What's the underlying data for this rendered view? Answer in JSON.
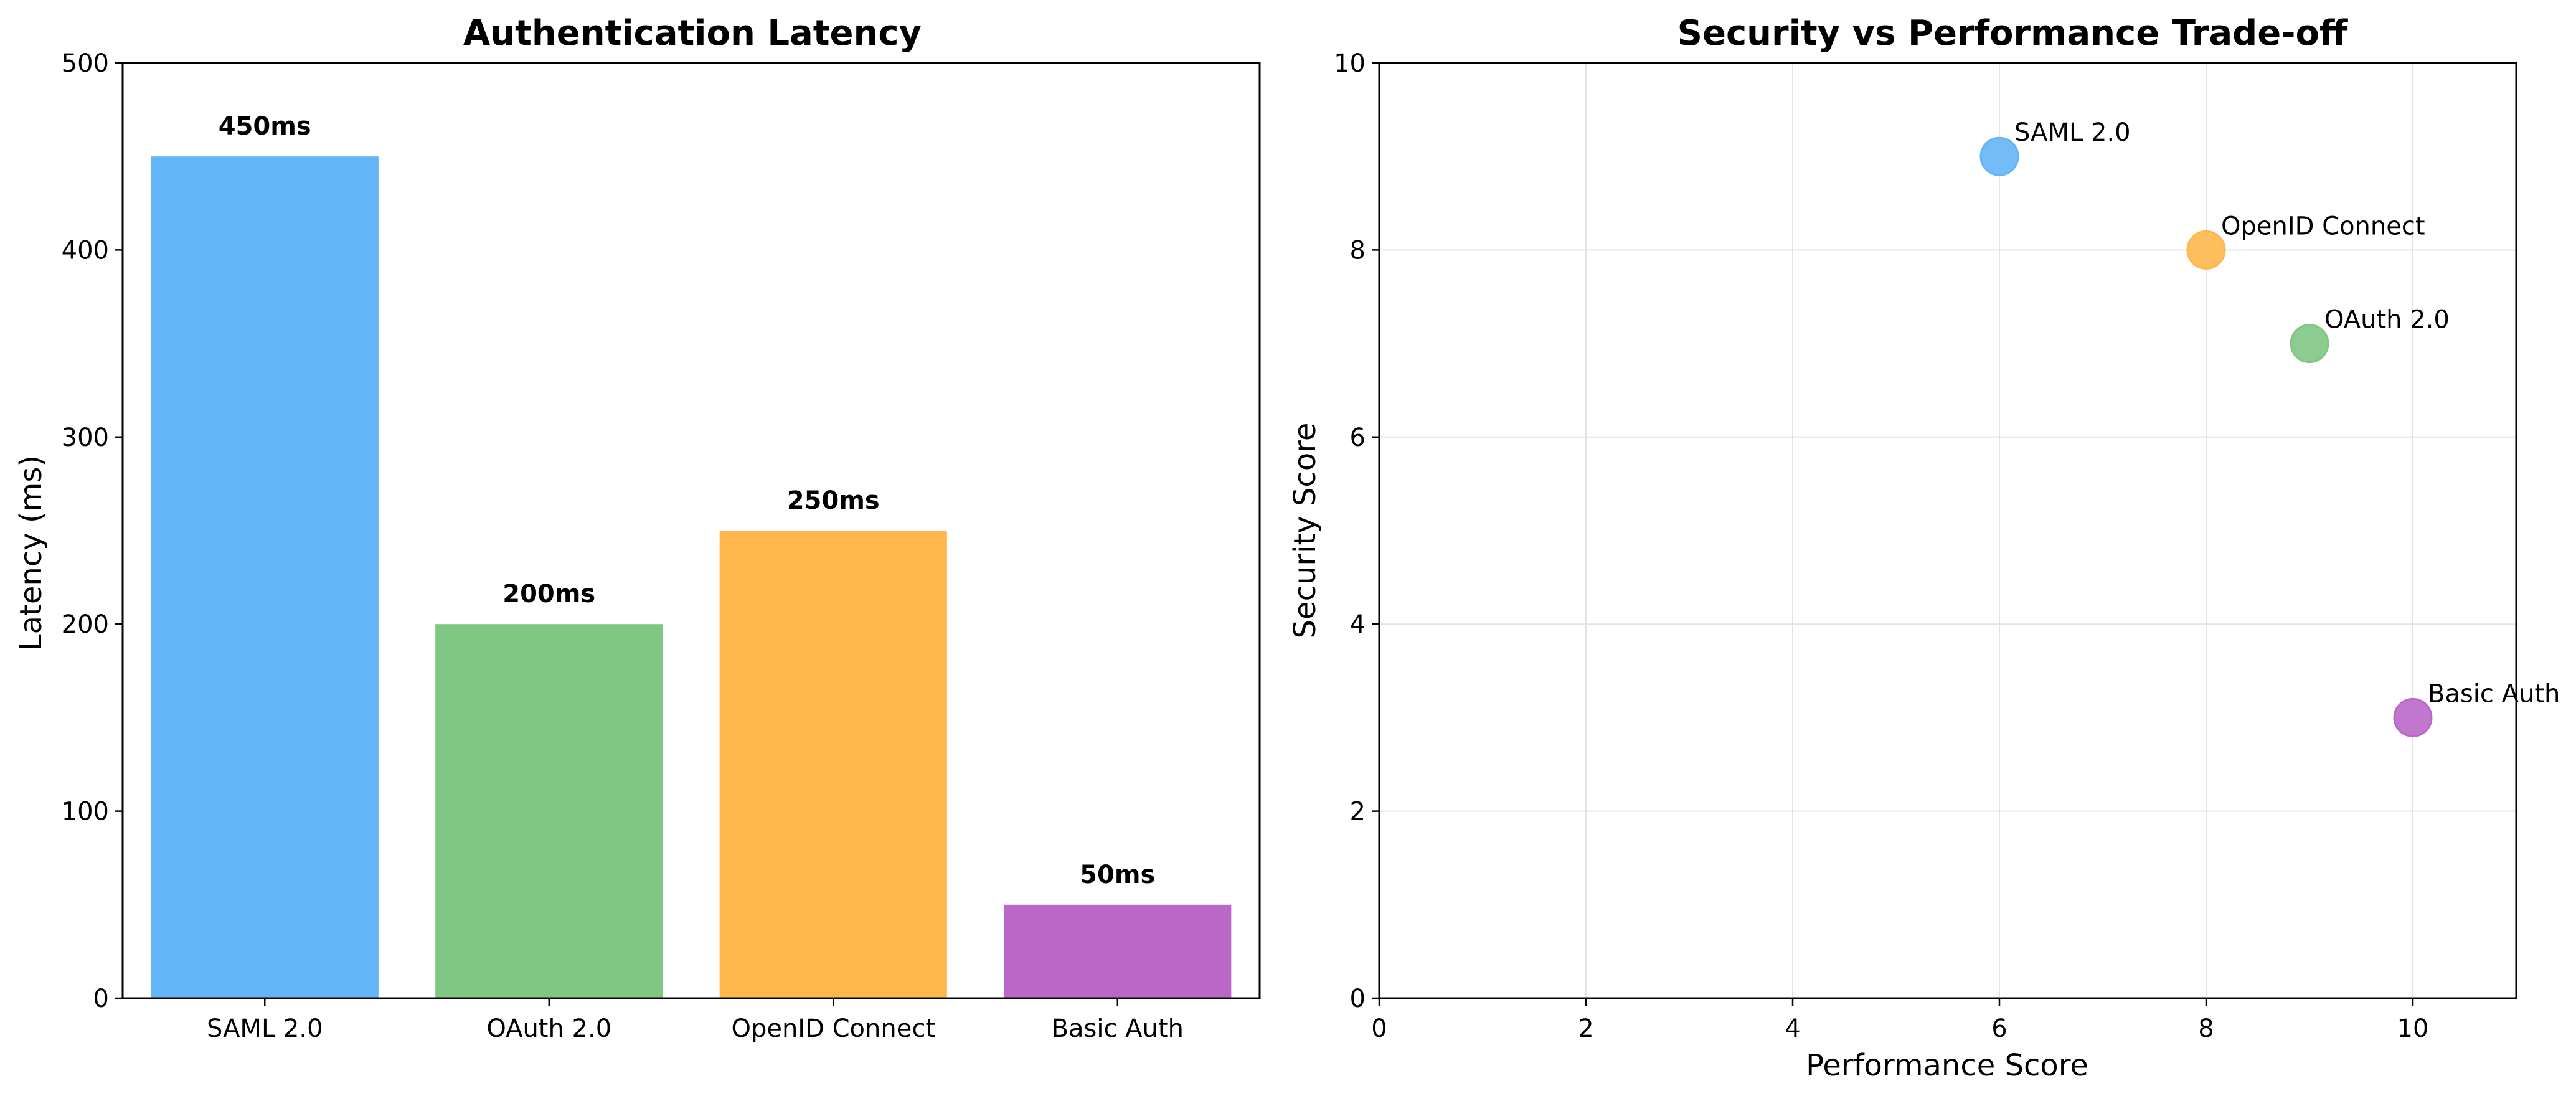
{
  "chart_data": [
    {
      "type": "bar",
      "title": "Authentication Latency",
      "xlabel": "",
      "ylabel": "Latency (ms)",
      "categories": [
        "SAML 2.0",
        "OAuth 2.0",
        "OpenID Connect",
        "Basic Auth"
      ],
      "values": [
        450,
        200,
        250,
        50
      ],
      "value_labels": [
        "450ms",
        "200ms",
        "250ms",
        "50ms"
      ],
      "colors": [
        "#64b5f6",
        "#81c784",
        "#ffb74d",
        "#ba68c8"
      ],
      "ylim": [
        0,
        500
      ],
      "yticks": [
        0,
        100,
        200,
        300,
        400,
        500
      ],
      "grid": false
    },
    {
      "type": "scatter",
      "title": "Security vs Performance Trade-off",
      "xlabel": "Performance Score",
      "ylabel": "Security Score",
      "points": [
        {
          "label": "SAML 2.0",
          "x": 6,
          "y": 9,
          "color": "#64b5f6"
        },
        {
          "label": "OAuth 2.0",
          "x": 9,
          "y": 7,
          "color": "#81c784"
        },
        {
          "label": "OpenID Connect",
          "x": 8,
          "y": 8,
          "color": "#ffb74d"
        },
        {
          "label": "Basic Auth",
          "x": 10,
          "y": 3,
          "color": "#ba68c8"
        }
      ],
      "xlim": [
        0,
        11
      ],
      "ylim": [
        0,
        10
      ],
      "xticks": [
        0,
        2,
        4,
        6,
        8,
        10
      ],
      "yticks": [
        0,
        2,
        4,
        6,
        8,
        10
      ],
      "grid": true
    }
  ]
}
